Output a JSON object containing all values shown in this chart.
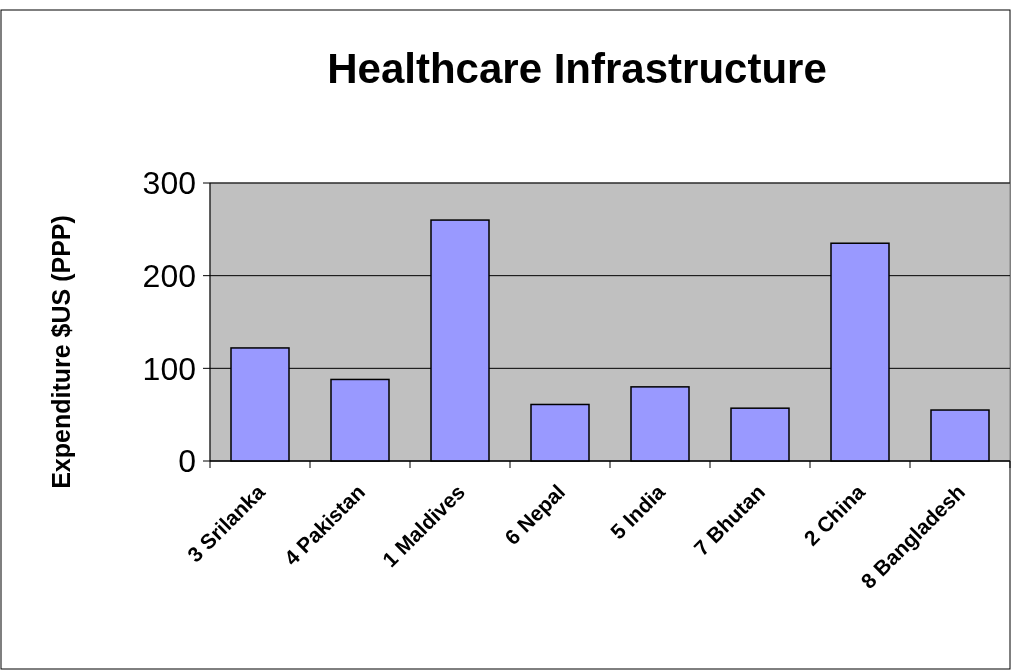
{
  "chart_data": {
    "type": "bar",
    "title": "Healthcare Infrastructure",
    "ylabel": "Expenditure $US (PPP)",
    "categories": [
      "3 Srilanka",
      "4 Pakistan",
      "1 Maldives",
      "6 Nepal",
      "5 India",
      "7 Bhutan",
      "2 China",
      "8 Bangladesh"
    ],
    "values": [
      122,
      88,
      260,
      61,
      80,
      57,
      235,
      55
    ],
    "color": "#9999ff",
    "ylim": [
      0,
      300
    ],
    "yticks": [
      0,
      100,
      200,
      300
    ],
    "grid": "y"
  }
}
